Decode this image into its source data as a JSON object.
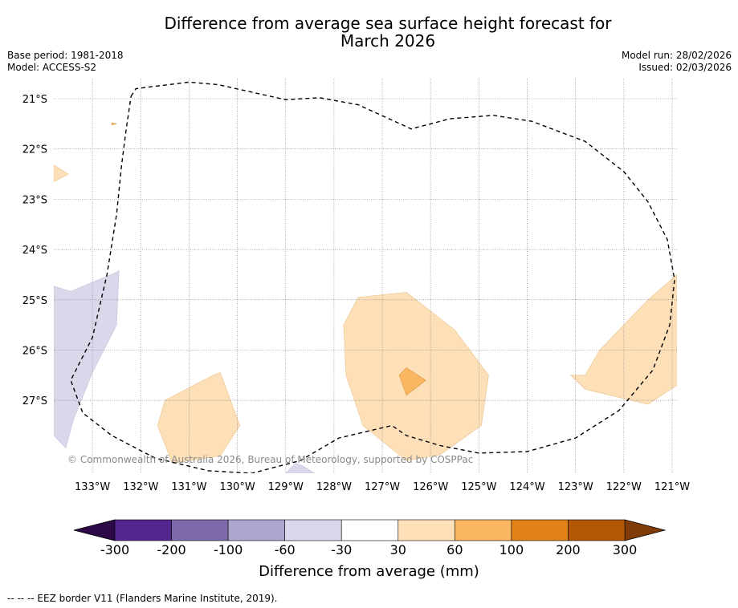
{
  "title": {
    "line1": "Difference from average sea surface height forecast for",
    "line2": "March 2026"
  },
  "meta": {
    "base_period": "Base period: 1981-2018",
    "model": "Model: ACCESS-S2",
    "model_run": "Model run: 28/02/2026",
    "issued": "Issued: 02/03/2026"
  },
  "map": {
    "lon_range": [
      -133.8,
      -120.9
    ],
    "lat_range": [
      -28.45,
      -20.6
    ],
    "lat_labels": [
      "21°S",
      "22°S",
      "23°S",
      "24°S",
      "25°S",
      "26°S",
      "27°S"
    ],
    "lat_values": [
      -21,
      -22,
      -23,
      -24,
      -25,
      -26,
      -27
    ],
    "lon_labels": [
      "133°W",
      "132°W",
      "131°W",
      "130°W",
      "129°W",
      "128°W",
      "127°W",
      "126°W",
      "125°W",
      "124°W",
      "123°W",
      "122°W",
      "121°W"
    ],
    "lon_values": [
      -133,
      -132,
      -131,
      -130,
      -129,
      -128,
      -127,
      -126,
      -125,
      -124,
      -123,
      -122,
      -121
    ],
    "copyright": "© Commonwealth of Australia 2026, Bureau of Meteorology, supported by COSPPac",
    "eez_border": [
      [
        -132.2,
        -20.95
      ],
      [
        -132.1,
        -20.8
      ],
      [
        -131.0,
        -20.67
      ],
      [
        -130.4,
        -20.72
      ],
      [
        -129.0,
        -21.02
      ],
      [
        -128.3,
        -20.98
      ],
      [
        -127.5,
        -21.12
      ],
      [
        -126.4,
        -21.6
      ],
      [
        -125.6,
        -21.4
      ],
      [
        -124.7,
        -21.33
      ],
      [
        -123.9,
        -21.45
      ],
      [
        -122.8,
        -21.85
      ],
      [
        -122.0,
        -22.45
      ],
      [
        -121.5,
        -23.05
      ],
      [
        -121.1,
        -23.8
      ],
      [
        -120.95,
        -24.6
      ],
      [
        -121.05,
        -25.5
      ],
      [
        -121.4,
        -26.4
      ],
      [
        -122.1,
        -27.2
      ],
      [
        -123.0,
        -27.75
      ],
      [
        -124.0,
        -28.02
      ],
      [
        -125.0,
        -28.05
      ],
      [
        -125.8,
        -27.9
      ],
      [
        -126.5,
        -27.7
      ],
      [
        -126.8,
        -27.5
      ],
      [
        -127.9,
        -27.75
      ],
      [
        -128.7,
        -28.2
      ],
      [
        -129.7,
        -28.45
      ],
      [
        -130.6,
        -28.4
      ],
      [
        -131.7,
        -28.15
      ],
      [
        -132.6,
        -27.7
      ],
      [
        -133.2,
        -27.25
      ],
      [
        -133.45,
        -26.6
      ],
      [
        -133.0,
        -25.75
      ],
      [
        -132.7,
        -24.5
      ],
      [
        -132.5,
        -23.3
      ],
      [
        -132.4,
        -22.35
      ],
      [
        -132.3,
        -21.6
      ],
      [
        -132.2,
        -20.95
      ]
    ],
    "anomaly_regions": [
      {
        "category": "-60 to -30",
        "points": [
          [
            -133.8,
            -24.73
          ],
          [
            -133.45,
            -24.83
          ],
          [
            -132.55,
            -24.47
          ],
          [
            -132.45,
            -24.42
          ],
          [
            -132.5,
            -25.5
          ],
          [
            -133.0,
            -26.45
          ],
          [
            -133.4,
            -27.4
          ],
          [
            -133.55,
            -27.95
          ],
          [
            -133.8,
            -27.7
          ]
        ]
      },
      {
        "category": "-60 to -30",
        "points": [
          [
            -129.0,
            -28.45
          ],
          [
            -128.8,
            -28.25
          ],
          [
            -128.65,
            -28.3
          ],
          [
            -128.4,
            -28.45
          ]
        ]
      },
      {
        "category": "30 to 60",
        "points": [
          [
            -133.8,
            -22.32
          ],
          [
            -133.5,
            -22.5
          ],
          [
            -133.8,
            -22.65
          ]
        ]
      },
      {
        "category": "30 to 60",
        "points": [
          [
            -131.5,
            -27.0
          ],
          [
            -130.5,
            -26.5
          ],
          [
            -130.35,
            -26.45
          ],
          [
            -129.95,
            -27.5
          ],
          [
            -130.35,
            -28.1
          ],
          [
            -131.35,
            -28.25
          ],
          [
            -131.65,
            -27.5
          ]
        ]
      },
      {
        "category": "30 to 60",
        "points": [
          [
            -127.8,
            -25.5
          ],
          [
            -127.5,
            -24.95
          ],
          [
            -126.5,
            -24.85
          ],
          [
            -125.5,
            -25.6
          ],
          [
            -124.8,
            -26.5
          ],
          [
            -124.95,
            -27.5
          ],
          [
            -125.8,
            -28.08
          ],
          [
            -126.5,
            -28.2
          ],
          [
            -127.4,
            -27.5
          ],
          [
            -127.75,
            -26.5
          ]
        ]
      },
      {
        "category": "60 to 100",
        "points": [
          [
            -126.65,
            -26.5
          ],
          [
            -126.5,
            -26.35
          ],
          [
            -126.1,
            -26.6
          ],
          [
            -126.5,
            -26.9
          ]
        ]
      },
      {
        "category": "60 to 100",
        "points": [
          [
            -132.6,
            -21.48
          ],
          [
            -132.5,
            -21.5
          ],
          [
            -132.6,
            -21.52
          ]
        ]
      },
      {
        "category": "30 to 60",
        "points": [
          [
            -120.9,
            -24.5
          ],
          [
            -121.5,
            -25.0
          ],
          [
            -122.0,
            -25.5
          ],
          [
            -122.5,
            -26.0
          ],
          [
            -122.8,
            -26.5
          ],
          [
            -123.1,
            -26.5
          ],
          [
            -122.8,
            -26.78
          ],
          [
            -121.5,
            -27.08
          ],
          [
            -120.9,
            -26.7
          ]
        ]
      }
    ]
  },
  "colorbar": {
    "ticks": [
      "-300",
      "-200",
      "-100",
      "-60",
      "-30",
      "30",
      "60",
      "100",
      "200",
      "300"
    ],
    "colors": [
      "#54278f",
      "#7c6aaa",
      "#ada6d0",
      "#d9d8ea",
      "#ffffff",
      "#fde0b8",
      "#fbb662",
      "#e2831a",
      "#b35806"
    ],
    "under_color": "#2d0846",
    "over_color": "#7f3b08",
    "label": "Difference from average (mm)"
  },
  "footnote": "--  --  -- EEZ border V11 (Flanders Marine Institute, 2019)."
}
